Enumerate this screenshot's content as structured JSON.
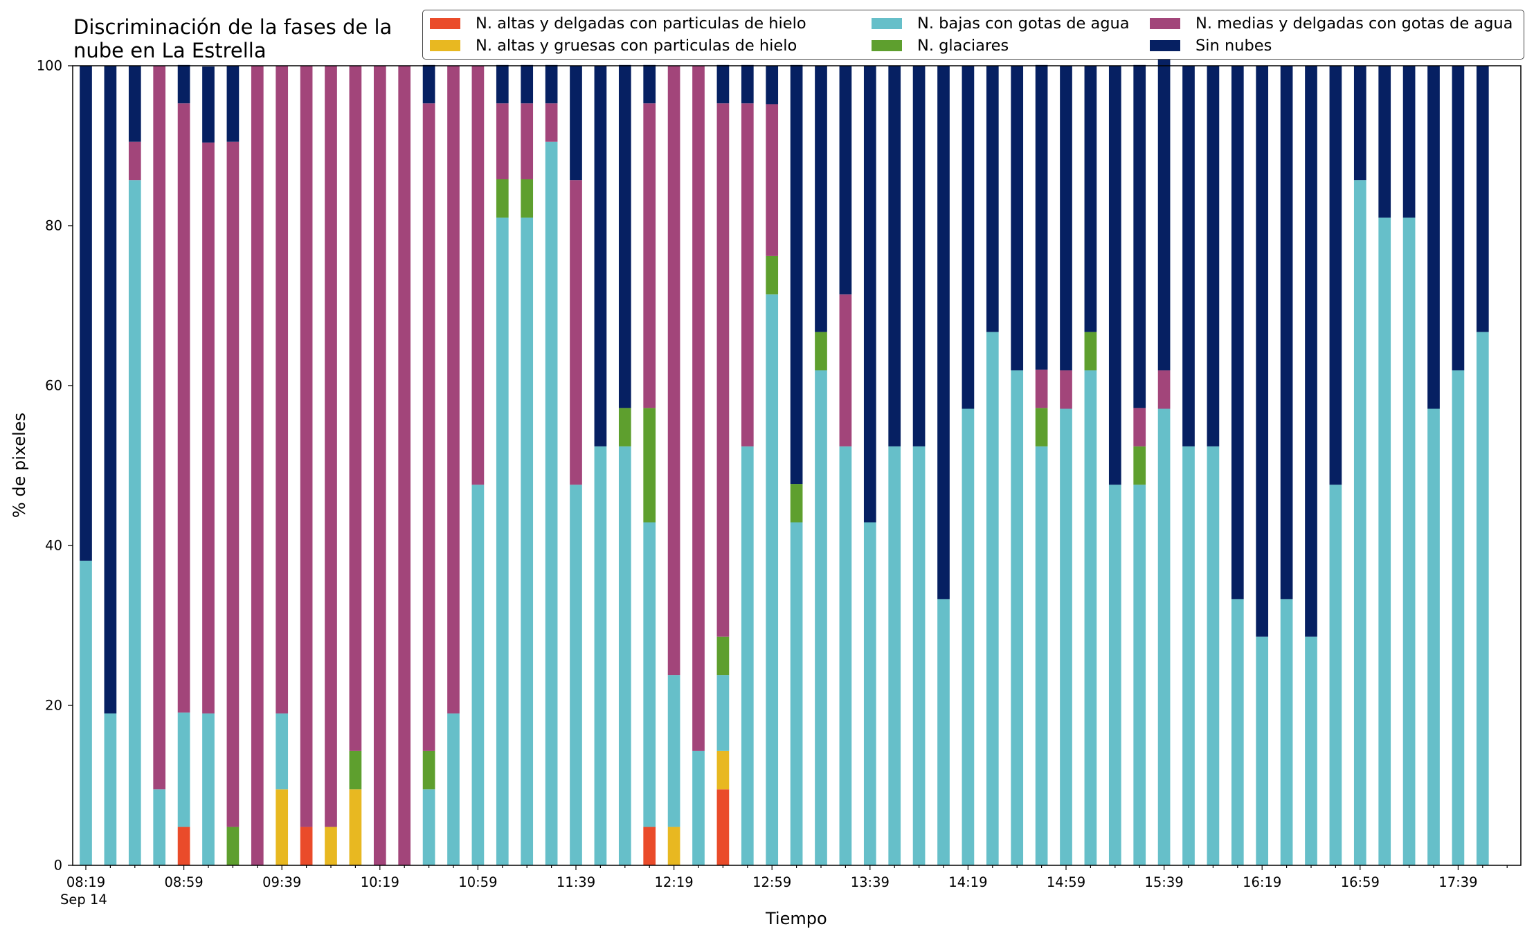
{
  "chart_data": {
    "type": "bar",
    "stacked": true,
    "title": "Discriminación de la fases de la nube en La Estrella",
    "title_lines": [
      "Discriminación de la fases de la",
      "nube en La Estrella"
    ],
    "xlabel": "Tiempo",
    "ylabel": "% de pixeles",
    "ylim": [
      0,
      100
    ],
    "yticks": [
      0,
      20,
      40,
      60,
      80,
      100
    ],
    "xtick_labels": [
      "08:19",
      "08:59",
      "09:39",
      "10:19",
      "10:59",
      "11:39",
      "12:19",
      "12:59",
      "13:39",
      "14:19",
      "14:59",
      "15:39",
      "16:19",
      "16:59",
      "17:39"
    ],
    "date_label": "Sep 14",
    "grid": false,
    "legend_position": "top-right",
    "categories": [
      "08:19",
      "08:29",
      "08:39",
      "08:49",
      "08:59",
      "09:09",
      "09:19",
      "09:29",
      "09:39",
      "09:49",
      "09:59",
      "10:09",
      "10:19",
      "10:29",
      "10:39",
      "10:49",
      "10:59",
      "11:09",
      "11:19",
      "11:29",
      "11:39",
      "11:49",
      "11:59",
      "12:09",
      "12:19",
      "12:29",
      "12:39",
      "12:49",
      "12:59",
      "13:09",
      "13:19",
      "13:29",
      "13:39",
      "13:49",
      "13:59",
      "14:09",
      "14:19",
      "14:29",
      "14:39",
      "14:49",
      "14:59",
      "15:09",
      "15:19",
      "15:29",
      "15:39",
      "15:49",
      "15:59",
      "16:09",
      "16:19",
      "16:29",
      "16:39",
      "16:49",
      "16:59",
      "17:09",
      "17:19",
      "17:29",
      "17:39",
      "17:49"
    ],
    "series": [
      {
        "name": "N. altas y delgadas con particulas de hielo",
        "color": "#ea4b2a",
        "values": [
          0,
          0,
          0,
          0,
          4.8,
          0,
          0,
          0,
          0,
          4.8,
          0,
          0,
          0,
          0,
          0,
          0,
          0,
          0,
          0,
          0,
          0,
          0,
          0,
          4.8,
          0,
          0,
          9.5,
          0,
          0,
          0,
          0,
          0,
          0,
          0,
          0,
          0,
          0,
          0,
          0,
          0,
          0,
          0,
          0,
          0,
          0,
          0,
          0,
          0,
          0,
          0,
          0,
          0,
          0,
          0,
          0,
          0,
          0,
          0
        ]
      },
      {
        "name": "N. altas y gruesas con particulas de hielo",
        "color": "#e8b821",
        "values": [
          0,
          0,
          0,
          0,
          0,
          0,
          0,
          0,
          9.5,
          0,
          4.8,
          9.5,
          0,
          0,
          0,
          0,
          0,
          0,
          0,
          0,
          0,
          0,
          0,
          0,
          4.8,
          0,
          4.8,
          0,
          0,
          0,
          0,
          0,
          0,
          0,
          0,
          0,
          0,
          0,
          0,
          0,
          0,
          0,
          0,
          0,
          0,
          0,
          0,
          0,
          0,
          0,
          0,
          0,
          0,
          0,
          0,
          0,
          0,
          0
        ]
      },
      {
        "name": "N. bajas con gotas de agua",
        "color": "#66bfc9",
        "values": [
          38.1,
          19,
          85.7,
          9.5,
          14.3,
          19,
          0,
          0,
          9.5,
          0,
          0,
          0,
          0,
          0,
          9.5,
          19,
          47.6,
          81,
          81,
          90.5,
          47.6,
          52.4,
          52.4,
          38.1,
          19,
          14.3,
          9.5,
          52.4,
          71.4,
          42.9,
          61.9,
          52.4,
          42.9,
          52.4,
          52.4,
          33.3,
          57.1,
          66.7,
          61.9,
          52.4,
          57.1,
          61.9,
          47.6,
          47.6,
          57.1,
          52.4,
          52.4,
          33.3,
          28.6,
          33.3,
          28.6,
          47.6,
          85.7,
          81,
          81,
          57.1,
          61.9,
          66.7
        ]
      },
      {
        "name": "N. glaciares",
        "color": "#5e9f2e",
        "values": [
          0,
          0,
          0,
          0,
          0,
          0,
          4.8,
          0,
          0,
          0,
          0,
          4.8,
          0,
          0,
          4.8,
          0,
          0,
          4.8,
          4.8,
          0,
          0,
          0,
          4.8,
          14.3,
          0,
          0,
          4.8,
          0,
          4.8,
          4.8,
          4.8,
          0,
          0,
          0,
          0,
          0,
          0,
          0,
          0,
          4.8,
          0,
          4.8,
          0,
          4.8,
          0,
          0,
          0,
          0,
          0,
          0,
          0,
          0,
          0,
          0,
          0,
          0,
          0,
          0
        ]
      },
      {
        "name": "N. medias y delgadas con gotas de agua",
        "color": "#a2457a",
        "values": [
          0,
          0,
          4.8,
          90.5,
          76.2,
          71.4,
          85.7,
          100,
          81,
          95.2,
          95.2,
          85.7,
          100,
          100,
          81,
          81,
          52.4,
          9.5,
          9.5,
          4.8,
          38.1,
          0,
          0,
          38.1,
          76.2,
          85.7,
          66.7,
          42.9,
          19,
          0,
          0,
          19,
          0,
          0,
          0,
          0,
          0,
          0,
          0,
          4.8,
          4.8,
          0,
          0,
          4.8,
          4.8,
          0,
          0,
          0,
          0,
          0,
          0,
          0,
          0,
          0,
          0,
          0,
          0,
          0
        ]
      },
      {
        "name": "Sin nubes",
        "color": "#062062",
        "values": [
          61.9,
          81,
          9.5,
          0,
          4.8,
          9.5,
          9.5,
          0,
          0,
          0,
          0,
          0,
          0,
          0,
          4.8,
          0,
          0,
          4.8,
          4.8,
          4.8,
          14.3,
          47.6,
          42.9,
          4.8,
          0,
          0,
          4.8,
          4.8,
          4.8,
          52.4,
          33.3,
          28.6,
          57.1,
          47.6,
          47.6,
          66.7,
          42.9,
          33.3,
          38.1,
          38.1,
          38.1,
          33.3,
          52.4,
          42.9,
          42.9,
          47.6,
          47.6,
          66.7,
          71.4,
          66.7,
          71.4,
          52.4,
          14.3,
          19,
          19,
          42.9,
          38.1,
          33.3
        ]
      }
    ]
  }
}
